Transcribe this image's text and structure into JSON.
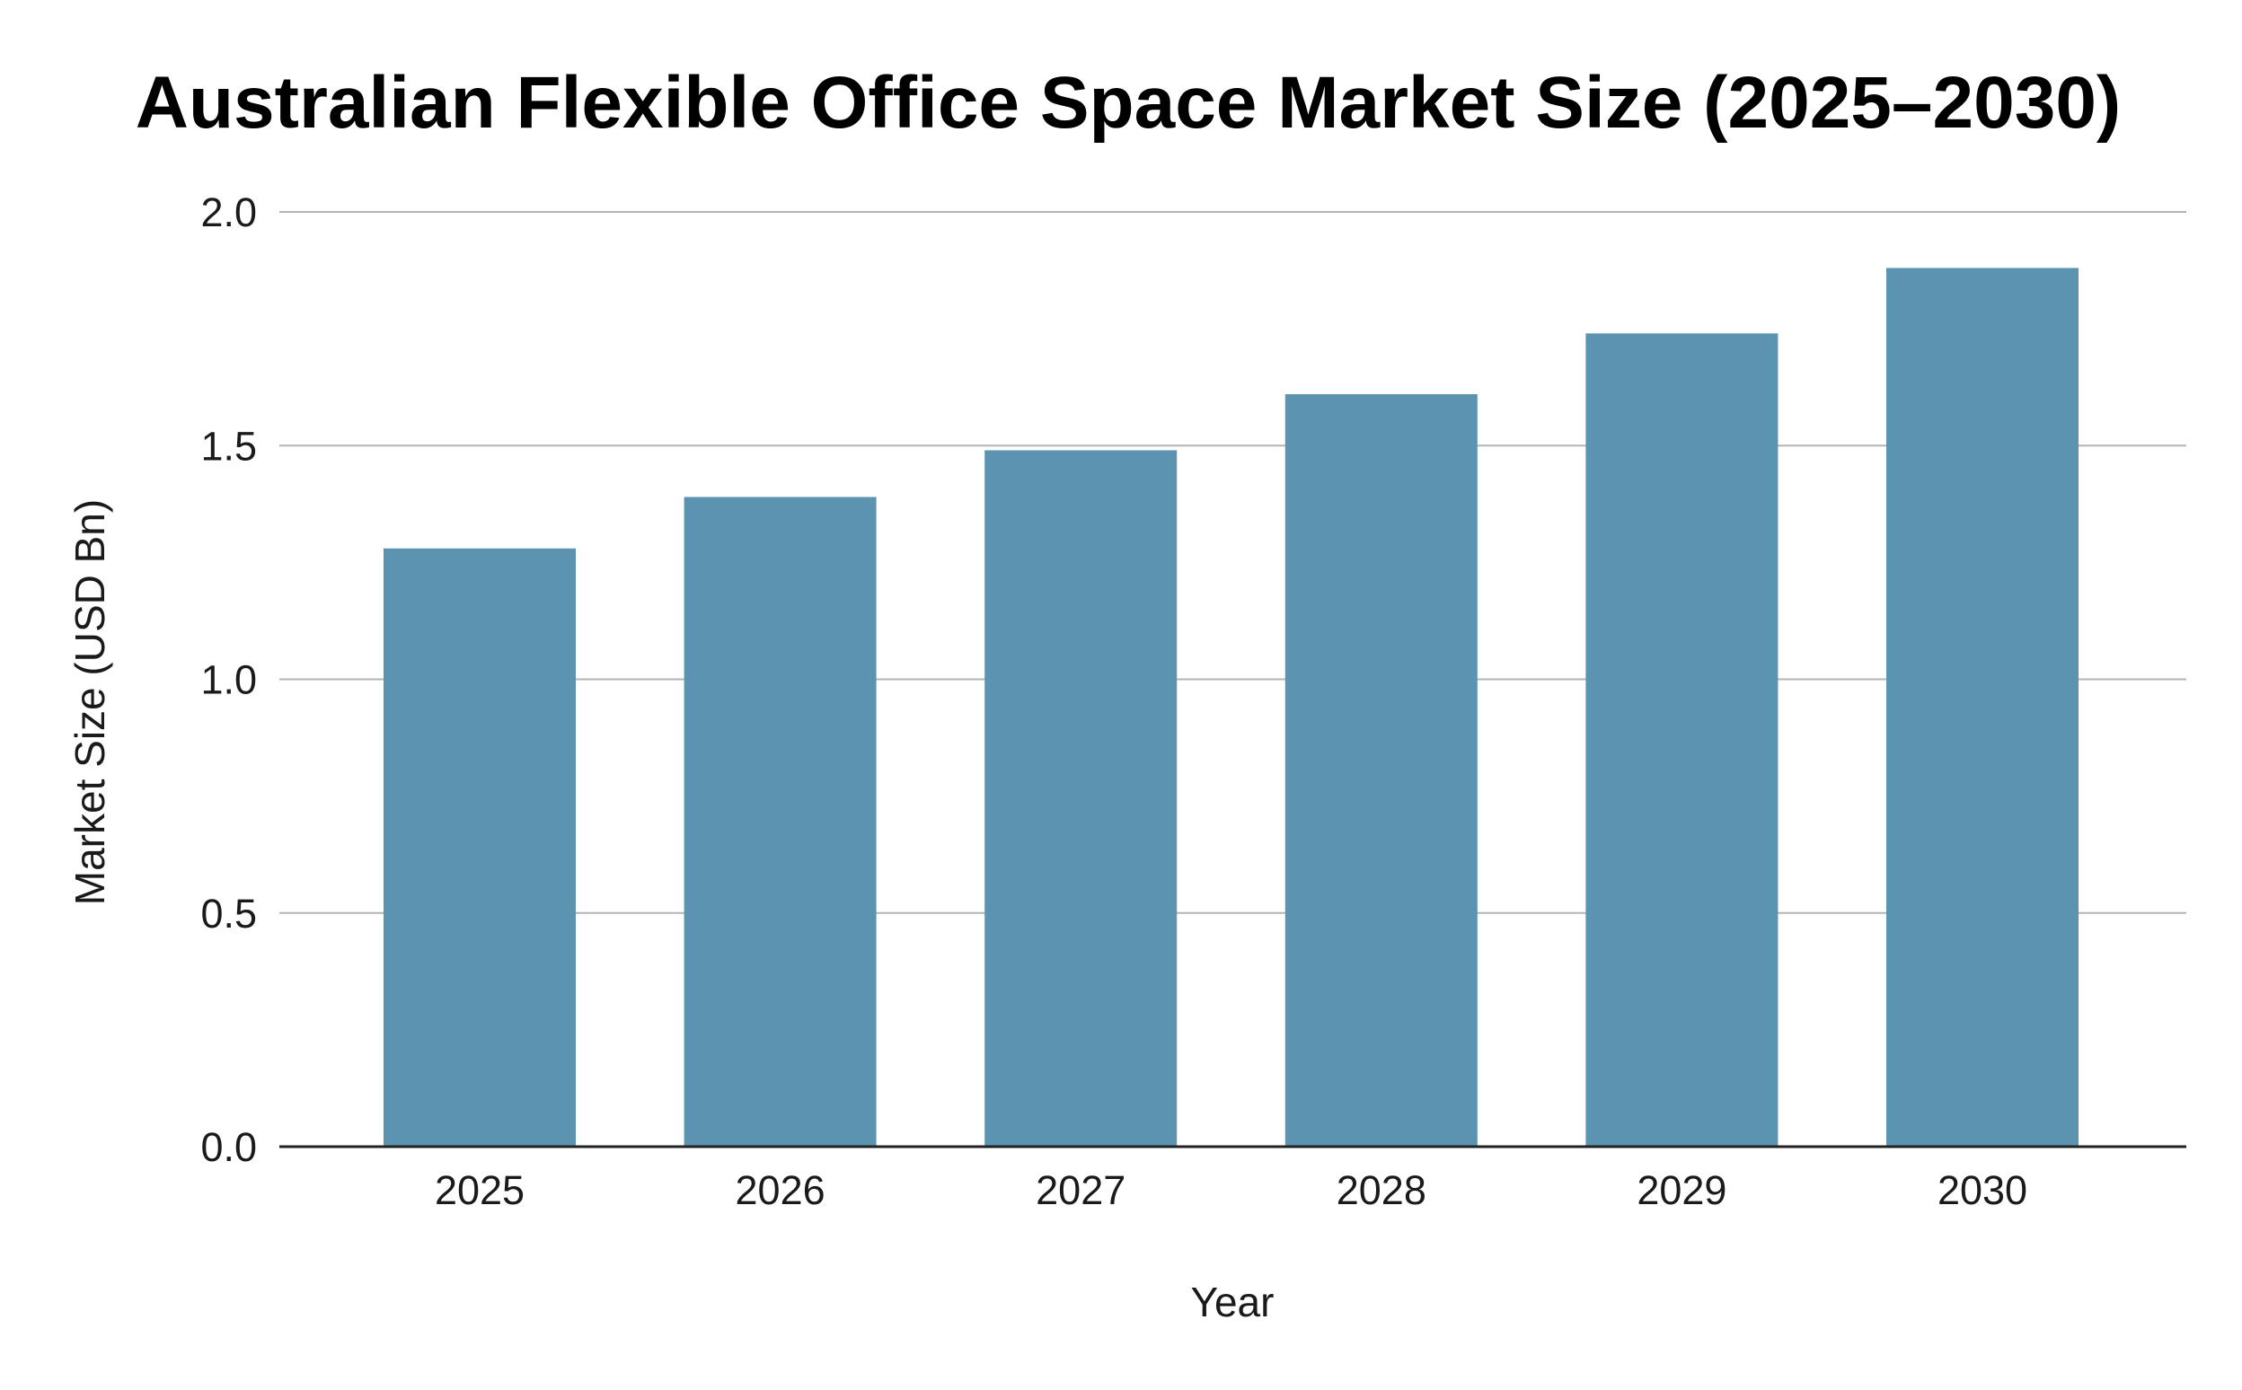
{
  "chart_data": {
    "type": "bar",
    "title": "Australian Flexible Office Space Market Size (2025–2030)",
    "xlabel": "Year",
    "ylabel": "Market Size (USD Bn)",
    "categories": [
      "2025",
      "2026",
      "2027",
      "2028",
      "2029",
      "2030"
    ],
    "values": [
      1.28,
      1.39,
      1.49,
      1.61,
      1.74,
      1.88
    ],
    "ylim": [
      0,
      2.0
    ],
    "yticks": [
      "0.0",
      "0.5",
      "1.0",
      "1.5",
      "2.0"
    ],
    "grid": true,
    "legend": "none",
    "bar_color": "#5b93b0"
  }
}
